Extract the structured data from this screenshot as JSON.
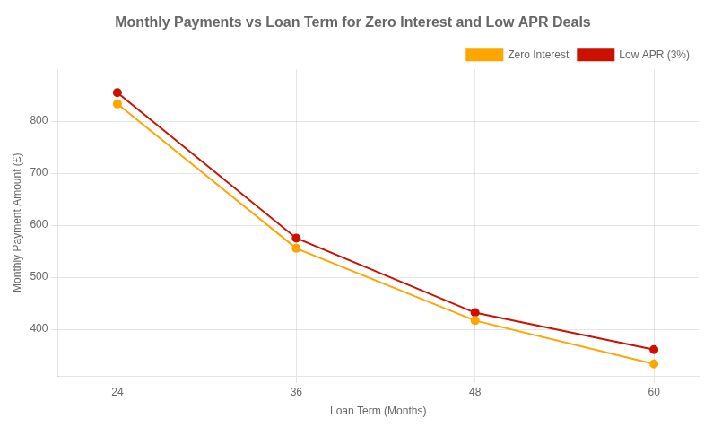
{
  "chart_data": {
    "type": "line",
    "title": "Monthly Payments vs Loan Term for Zero Interest and Low APR Deals",
    "xlabel": "Loan Term (Months)",
    "ylabel": "Monthly Payment Amount (£)",
    "x": [
      24,
      36,
      48,
      60
    ],
    "series": [
      {
        "name": "Zero Interest",
        "color": "#FFA500",
        "marker": "circle",
        "values": [
          833.33,
          555.56,
          416.67,
          333.33
        ]
      },
      {
        "name": "Low APR (3%)",
        "color": "#CC1100",
        "marker": "circle",
        "values": [
          854.98,
          575.23,
          431.85,
          360.9
        ]
      }
    ],
    "xlim": [
      20,
      63
    ],
    "xticks": [
      24,
      36,
      48,
      60
    ],
    "ylim": [
      310,
      900
    ],
    "yticks": [
      400,
      500,
      600,
      700,
      800
    ],
    "grid": true,
    "legend": "upper right"
  }
}
